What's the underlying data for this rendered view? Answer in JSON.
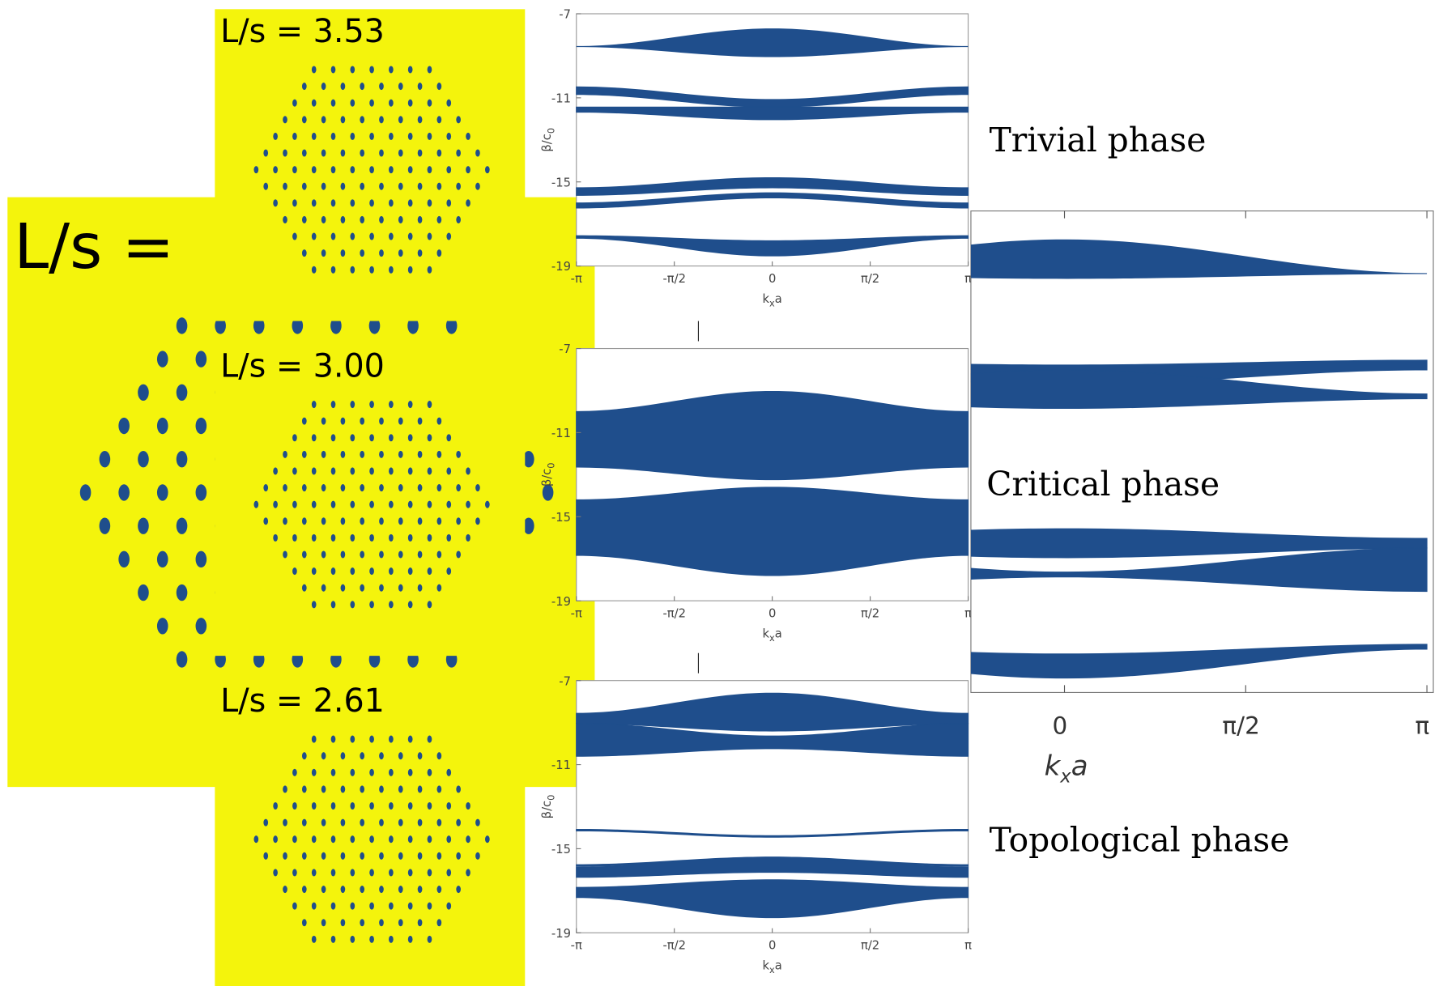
{
  "big_panel": {
    "label": "L/s ="
  },
  "panels": [
    {
      "label": "L/s = 3.53"
    },
    {
      "label": "L/s = 3.00"
    },
    {
      "label": "L/s = 2.61"
    }
  ],
  "plots": [
    {
      "yticks": [
        -7,
        -11,
        -15,
        -19
      ],
      "xticks": [
        "-π",
        "-π/2",
        "0",
        "π/2",
        "π"
      ],
      "ylabel": "β/c",
      "ylabel_sub": "0",
      "xlabel": "k",
      "xlabel_sub": "x",
      "xlabel_tail": "a"
    },
    {
      "yticks": [
        -7,
        -11,
        -15,
        -19
      ],
      "xticks": [
        "-π",
        "-π/2",
        "0",
        "π/2",
        "π"
      ],
      "ylabel": "β/c",
      "ylabel_sub": "0",
      "xlabel": "k",
      "xlabel_sub": "x",
      "xlabel_tail": "a"
    },
    {
      "yticks": [
        -7,
        -11,
        -15,
        -19
      ],
      "xticks": [
        "-π",
        "-π/2",
        "0",
        "π/2",
        "π"
      ],
      "ylabel": "β/c",
      "ylabel_sub": "0",
      "xlabel": "k",
      "xlabel_sub": "x",
      "xlabel_tail": "a"
    }
  ],
  "zoom": {
    "xticks": [
      "0",
      "π/2",
      "π"
    ],
    "xlabel": "k",
    "xlabel_sub": "x",
    "xlabel_tail": "a"
  },
  "phases": [
    "Trivial phase",
    "Critical phase",
    "Topological phase"
  ]
}
